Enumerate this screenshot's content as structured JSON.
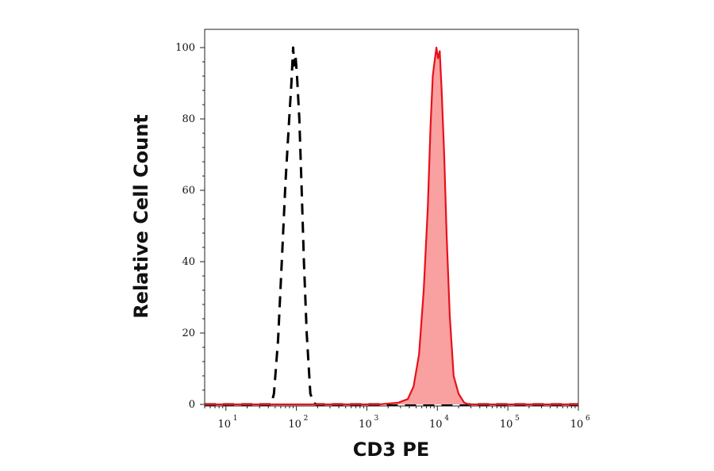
{
  "chart_data": {
    "type": "area",
    "xlabel": "CD3 PE",
    "ylabel": "Relative Cell Count",
    "x_scale": "log",
    "xlim": [
      5,
      1000000
    ],
    "ylim": [
      0,
      100
    ],
    "y_ticks": [
      0,
      20,
      40,
      60,
      80,
      100
    ],
    "x_ticks": [
      {
        "value": 10,
        "base": "10",
        "exp": "1"
      },
      {
        "value": 100,
        "base": "10",
        "exp": "2"
      },
      {
        "value": 1000,
        "base": "10",
        "exp": "3"
      },
      {
        "value": 10000,
        "base": "10",
        "exp": "4"
      },
      {
        "value": 100000,
        "base": "10",
        "exp": "5"
      },
      {
        "value": 1000000,
        "base": "10",
        "exp": "6"
      }
    ],
    "grid": false,
    "series": [
      {
        "style": "dashed",
        "color": "#000000",
        "fill": "none",
        "x": [
          5,
          44,
          48,
          55,
          62,
          70,
          78,
          85,
          90,
          93,
          97,
          102,
          110,
          118,
          128,
          140,
          158,
          175,
          190,
          1000000
        ],
        "y": [
          0,
          0,
          3,
          18,
          40,
          62,
          78,
          90,
          100,
          95,
          98,
          92,
          80,
          62,
          40,
          20,
          3,
          0.5,
          0,
          0
        ]
      },
      {
        "style": "solid",
        "color": "#e8101a",
        "fill": "#f9a0a0",
        "x": [
          5,
          1500,
          2800,
          3800,
          4600,
          5500,
          6400,
          7300,
          8000,
          8600,
          9100,
          9700,
          10200,
          10800,
          11500,
          12500,
          13500,
          15000,
          17000,
          20000,
          24000,
          28000,
          1000000
        ],
        "y": [
          0,
          0,
          0.5,
          1.5,
          5,
          14,
          32,
          55,
          78,
          92,
          96,
          100,
          97,
          99,
          88,
          70,
          48,
          25,
          8,
          3,
          0.5,
          0,
          0
        ]
      }
    ]
  }
}
